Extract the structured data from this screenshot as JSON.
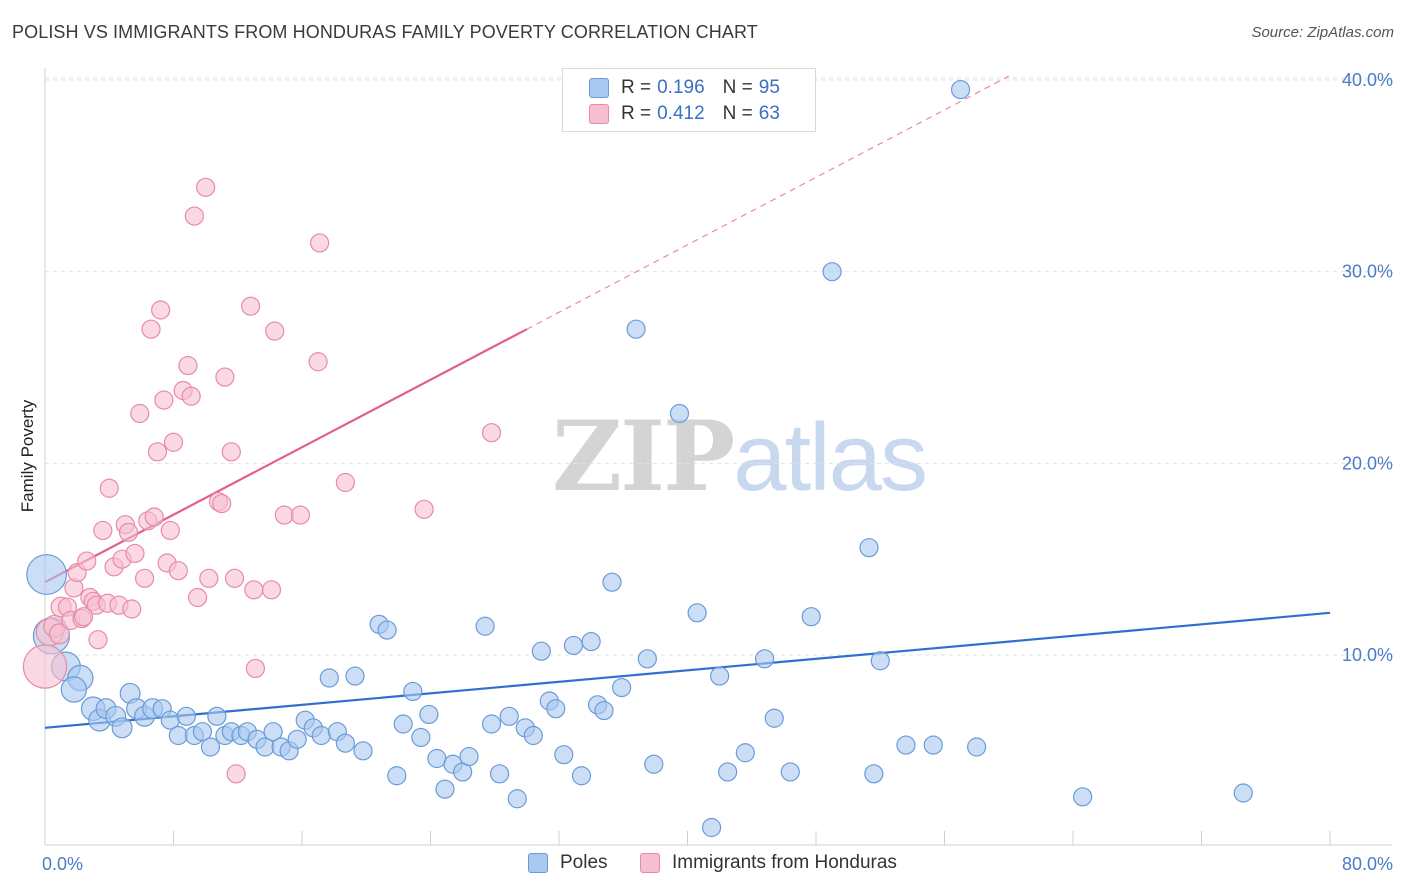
{
  "title": "POLISH VS IMMIGRANTS FROM HONDURAS FAMILY POVERTY CORRELATION CHART",
  "source": "Source: ZipAtlas.com",
  "watermark": {
    "zip": "ZIP",
    "atlas": "atlas"
  },
  "colors": {
    "poles_fill": "#a9c8f0",
    "poles_stroke": "#6a9bd8",
    "poles_line": "#2f6fcf",
    "honduras_fill": "#f6bfd0",
    "honduras_stroke": "#e88aa8",
    "honduras_line": "#e0608a",
    "tick_text": "#4a7cc7",
    "grid": "#e2e2e2"
  },
  "legend": {
    "rows": [
      {
        "r_label": "R =",
        "r_value": "0.196",
        "n_label": "N =",
        "n_value": "95"
      },
      {
        "r_label": "R =",
        "r_value": "0.412",
        "n_label": "N =",
        "n_value": "63"
      }
    ]
  },
  "bottom_legend": [
    "Poles",
    "Immigrants from Honduras"
  ],
  "chart_data": {
    "type": "scatter",
    "title": "POLISH VS IMMIGRANTS FROM HONDURAS FAMILY POVERTY CORRELATION CHART",
    "xlabel": "",
    "ylabel": "Family Poverty",
    "xlim": [
      0,
      80
    ],
    "ylim": [
      0,
      41
    ],
    "x_tick_labels": [
      "0.0%",
      "80.0%"
    ],
    "y_ticks": [
      10,
      20,
      30,
      40
    ],
    "y_tick_labels": [
      "10.0%",
      "20.0%",
      "30.0%",
      "40.0%"
    ],
    "grid": "horizontal dashed",
    "legend_placement": "top-center",
    "series": [
      {
        "name": "Poles",
        "r": 0.196,
        "n": 95,
        "trend": {
          "x": [
            0,
            80
          ],
          "y": [
            6.2,
            12.2
          ]
        },
        "points": [
          [
            0.1,
            14.2,
            2.2
          ],
          [
            0.4,
            11.0,
            2.0
          ],
          [
            1.3,
            9.4,
            1.6
          ],
          [
            2.2,
            8.8,
            1.4
          ],
          [
            1.8,
            8.2,
            1.4
          ],
          [
            3.0,
            7.2,
            1.3
          ],
          [
            3.4,
            6.6,
            1.2
          ],
          [
            3.8,
            7.2,
            1.1
          ],
          [
            4.4,
            6.8,
            1.1
          ],
          [
            4.8,
            6.2,
            1.1
          ],
          [
            5.3,
            8.0,
            1.1
          ],
          [
            5.7,
            7.2,
            1.1
          ],
          [
            6.2,
            6.8,
            1.1
          ],
          [
            6.7,
            7.2,
            1.1
          ],
          [
            7.3,
            7.2,
            1.0
          ],
          [
            7.8,
            6.6,
            1.0
          ],
          [
            8.3,
            5.8,
            1.0
          ],
          [
            8.8,
            6.8,
            1.0
          ],
          [
            9.3,
            5.8,
            1.0
          ],
          [
            9.8,
            6.0,
            1.0
          ],
          [
            10.3,
            5.2,
            1.0
          ],
          [
            10.7,
            6.8,
            1.0
          ],
          [
            11.2,
            5.8,
            1.0
          ],
          [
            11.6,
            6.0,
            1.0
          ],
          [
            12.2,
            5.8,
            1.0
          ],
          [
            12.6,
            6.0,
            1.0
          ],
          [
            13.2,
            5.6,
            1.0
          ],
          [
            13.7,
            5.2,
            1.0
          ],
          [
            14.2,
            6.0,
            1.0
          ],
          [
            14.7,
            5.2,
            1.0
          ],
          [
            15.2,
            5.0,
            1.0
          ],
          [
            15.7,
            5.6,
            1.0
          ],
          [
            16.2,
            6.6,
            1.0
          ],
          [
            16.7,
            6.2,
            1.0
          ],
          [
            17.2,
            5.8,
            1.0
          ],
          [
            17.7,
            8.8,
            1.0
          ],
          [
            18.2,
            6.0,
            1.0
          ],
          [
            18.7,
            5.4,
            1.0
          ],
          [
            19.3,
            8.9,
            1.0
          ],
          [
            19.8,
            5.0,
            1.0
          ],
          [
            20.8,
            11.6,
            1.0
          ],
          [
            21.3,
            11.3,
            1.0
          ],
          [
            21.9,
            3.7,
            1.0
          ],
          [
            22.3,
            6.4,
            1.0
          ],
          [
            22.9,
            8.1,
            1.0
          ],
          [
            23.4,
            5.7,
            1.0
          ],
          [
            23.9,
            6.9,
            1.0
          ],
          [
            24.4,
            4.6,
            1.0
          ],
          [
            24.9,
            3.0,
            1.0
          ],
          [
            25.4,
            4.3,
            1.0
          ],
          [
            26.0,
            3.9,
            1.0
          ],
          [
            26.4,
            4.7,
            1.0
          ],
          [
            27.4,
            11.5,
            1.0
          ],
          [
            27.8,
            6.4,
            1.0
          ],
          [
            28.3,
            3.8,
            1.0
          ],
          [
            28.9,
            6.8,
            1.0
          ],
          [
            29.4,
            2.5,
            1.0
          ],
          [
            29.9,
            6.2,
            1.0
          ],
          [
            30.4,
            5.8,
            1.0
          ],
          [
            30.9,
            10.2,
            1.0
          ],
          [
            31.4,
            7.6,
            1.0
          ],
          [
            31.8,
            7.2,
            1.0
          ],
          [
            32.3,
            4.8,
            1.0
          ],
          [
            32.9,
            10.5,
            1.0
          ],
          [
            33.4,
            3.7,
            1.0
          ],
          [
            34.0,
            10.7,
            1.0
          ],
          [
            34.4,
            7.4,
            1.0
          ],
          [
            34.8,
            7.1,
            1.0
          ],
          [
            35.3,
            13.8,
            1.0
          ],
          [
            35.9,
            8.3,
            1.0
          ],
          [
            36.4,
            37.9,
            1.0
          ],
          [
            36.8,
            27.0,
            1.0
          ],
          [
            37.5,
            9.8,
            1.0
          ],
          [
            37.9,
            4.3,
            1.0
          ],
          [
            39.5,
            22.6,
            1.0
          ],
          [
            40.6,
            12.2,
            1.0
          ],
          [
            41.5,
            1.0,
            1.0
          ],
          [
            42.0,
            8.9,
            1.0
          ],
          [
            42.5,
            3.9,
            1.0
          ],
          [
            43.6,
            4.9,
            1.0
          ],
          [
            44.8,
            9.8,
            1.0
          ],
          [
            45.4,
            6.7,
            1.0
          ],
          [
            46.4,
            3.9,
            1.0
          ],
          [
            47.7,
            12.0,
            1.0
          ],
          [
            49.0,
            30.0,
            1.0
          ],
          [
            51.6,
            3.8,
            1.0
          ],
          [
            51.3,
            15.6,
            1.0
          ],
          [
            52.0,
            9.7,
            1.0
          ],
          [
            53.6,
            5.3,
            1.0
          ],
          [
            55.3,
            5.3,
            1.0
          ],
          [
            58.0,
            5.2,
            1.0
          ],
          [
            57.0,
            39.5,
            1.0
          ],
          [
            64.6,
            2.6,
            1.0
          ],
          [
            74.6,
            2.8,
            1.0
          ]
        ]
      },
      {
        "name": "Immigrants from Honduras",
        "r": 0.412,
        "n": 63,
        "trend": {
          "x": [
            0,
            30
          ],
          "y": [
            13.8,
            27.0
          ]
        },
        "trend_dashed": {
          "x": [
            30,
            60
          ],
          "y": [
            27.0,
            40.2
          ]
        },
        "points": [
          [
            0.0,
            9.4,
            2.4
          ],
          [
            0.3,
            11.2,
            1.5
          ],
          [
            0.6,
            11.5,
            1.2
          ],
          [
            0.9,
            11.1,
            1.1
          ],
          [
            1.0,
            12.5,
            1.1
          ],
          [
            1.4,
            12.5,
            1.0
          ],
          [
            1.6,
            11.8,
            1.0
          ],
          [
            1.8,
            13.5,
            1.0
          ],
          [
            2.0,
            14.3,
            1.0
          ],
          [
            2.3,
            11.9,
            1.0
          ],
          [
            2.6,
            14.9,
            1.0
          ],
          [
            2.8,
            13.0,
            1.0
          ],
          [
            3.0,
            12.8,
            1.0
          ],
          [
            3.2,
            12.6,
            1.0
          ],
          [
            3.3,
            10.8,
            1.0
          ],
          [
            3.6,
            16.5,
            1.0
          ],
          [
            3.9,
            12.7,
            1.0
          ],
          [
            4.0,
            18.7,
            1.0
          ],
          [
            4.3,
            14.6,
            1.0
          ],
          [
            4.6,
            12.6,
            1.0
          ],
          [
            4.8,
            15.0,
            1.0
          ],
          [
            5.0,
            16.8,
            1.0
          ],
          [
            5.2,
            16.4,
            1.0
          ],
          [
            5.4,
            12.4,
            1.0
          ],
          [
            5.6,
            15.3,
            1.0
          ],
          [
            5.9,
            22.6,
            1.0
          ],
          [
            6.2,
            14.0,
            1.0
          ],
          [
            6.4,
            17.0,
            1.0
          ],
          [
            6.6,
            27.0,
            1.0
          ],
          [
            6.8,
            17.2,
            1.0
          ],
          [
            7.0,
            20.6,
            1.0
          ],
          [
            7.2,
            28.0,
            1.0
          ],
          [
            7.4,
            23.3,
            1.0
          ],
          [
            7.6,
            14.8,
            1.0
          ],
          [
            7.8,
            16.5,
            1.0
          ],
          [
            8.0,
            21.1,
            1.0
          ],
          [
            8.3,
            14.4,
            1.0
          ],
          [
            8.6,
            23.8,
            1.0
          ],
          [
            8.9,
            25.1,
            1.0
          ],
          [
            9.1,
            23.5,
            1.0
          ],
          [
            9.3,
            32.9,
            1.0
          ],
          [
            9.5,
            13.0,
            1.0
          ],
          [
            10.0,
            34.4,
            1.0
          ],
          [
            10.2,
            14.0,
            1.0
          ],
          [
            10.8,
            18.0,
            1.0
          ],
          [
            11.0,
            17.9,
            1.0
          ],
          [
            11.2,
            24.5,
            1.0
          ],
          [
            11.6,
            20.6,
            1.0
          ],
          [
            11.8,
            14.0,
            1.0
          ],
          [
            11.9,
            3.8,
            1.0
          ],
          [
            12.8,
            28.2,
            1.0
          ],
          [
            13.0,
            13.4,
            1.0
          ],
          [
            13.1,
            9.3,
            1.0
          ],
          [
            14.1,
            13.4,
            1.0
          ],
          [
            14.3,
            26.9,
            1.0
          ],
          [
            14.9,
            17.3,
            1.0
          ],
          [
            15.9,
            17.3,
            1.0
          ],
          [
            17.1,
            31.5,
            1.0
          ],
          [
            17.0,
            25.3,
            1.0
          ],
          [
            18.7,
            19.0,
            1.0
          ],
          [
            23.6,
            17.6,
            1.0
          ],
          [
            27.8,
            21.6,
            1.0
          ],
          [
            2.4,
            12.0,
            1.0
          ]
        ]
      }
    ]
  }
}
